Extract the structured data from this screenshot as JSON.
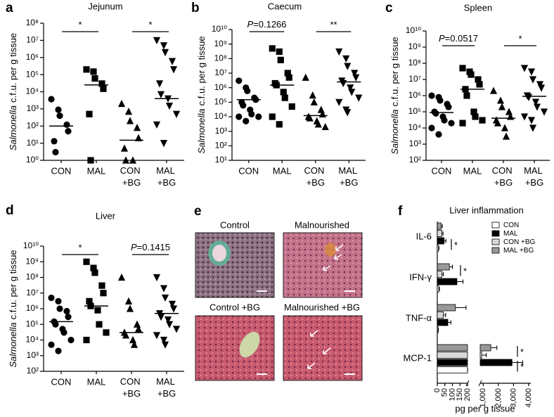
{
  "chart_data": [
    {
      "type": "dot",
      "panel": "a",
      "title": "Jejunum",
      "ylabel": {
        "italic": "Salmonella",
        "text": "c.f.u. per g tissue"
      },
      "categories": [
        "CON",
        "MAL",
        "CON +BG",
        "MAL +BG"
      ],
      "markers": [
        "circle",
        "square",
        "triangle",
        "triangle-down"
      ],
      "color": "#000000",
      "log_scale": true,
      "ylim": [
        1,
        100000000
      ],
      "yticks": [
        {
          "value": 1,
          "label": "10⁰"
        },
        {
          "value": 10,
          "label": "10¹"
        },
        {
          "value": 100,
          "label": "10²"
        },
        {
          "value": 1000,
          "label": "10³"
        },
        {
          "value": 10000,
          "label": "10⁴"
        },
        {
          "value": 100000,
          "label": "10⁵"
        },
        {
          "value": 1000000,
          "label": "10⁶"
        },
        {
          "value": 10000000,
          "label": "10⁷"
        },
        {
          "value": 100000000,
          "label": "10⁸"
        }
      ],
      "values": [
        [
          3700,
          900,
          400,
          120,
          50,
          13,
          3
        ],
        [
          200000,
          150000,
          60000,
          30000,
          15000,
          500,
          1
        ],
        [
          2000,
          700,
          200,
          80,
          20,
          5,
          1,
          1
        ],
        [
          10000000,
          5000000,
          2000000,
          600000,
          200000,
          30000,
          7000,
          4000,
          1500,
          500,
          120,
          10
        ]
      ],
      "medians": [
        100,
        25000,
        15,
        4000
      ],
      "annotations": [
        "*",
        "*"
      ]
    },
    {
      "type": "dot",
      "panel": "b",
      "title": "Caecum",
      "ylabel": {
        "italic": "Salmonella",
        "text": "c.f.u. per g tissue"
      },
      "categories": [
        "CON",
        "MAL",
        "CON +BG",
        "MAL +BG"
      ],
      "markers": [
        "circle",
        "square",
        "triangle",
        "triangle-down"
      ],
      "color": "#000000",
      "log_scale": true,
      "ylim": [
        10,
        10000000000
      ],
      "yticks": [
        {
          "value": 10,
          "label": "10¹"
        },
        {
          "value": 100,
          "label": "10²"
        },
        {
          "value": 1000,
          "label": "10³"
        },
        {
          "value": 10000,
          "label": "10⁴"
        },
        {
          "value": 100000,
          "label": "10⁵"
        },
        {
          "value": 1000000,
          "label": "10⁶"
        },
        {
          "value": 10000000,
          "label": "10⁷"
        },
        {
          "value": 100000000,
          "label": "10⁸"
        },
        {
          "value": 1000000000,
          "label": "10⁹"
        },
        {
          "value": 10000000000,
          "label": "10¹⁰"
        }
      ],
      "values": [
        [
          3000000,
          1000000,
          600000,
          200000,
          150000,
          100000,
          60000,
          30000,
          15000,
          10000,
          10000,
          5000
        ],
        [
          500000000,
          300000000,
          80000000,
          10000000,
          5000000,
          2000000,
          1500000,
          500000,
          200000,
          50000,
          10000,
          3000
        ],
        [
          5000000,
          300000,
          100000,
          30000,
          15000,
          10000,
          8000,
          5000,
          3000,
          2000
        ],
        [
          300000000,
          100000000,
          30000000,
          10000000,
          5000000,
          3000000,
          2000000,
          1000000,
          500000,
          200000,
          100000,
          30000,
          20000
        ]
      ],
      "medians": [
        150000,
        1500000,
        12000,
        2500000
      ],
      "annotations": [
        "P=0.1266",
        "**"
      ]
    },
    {
      "type": "dot",
      "panel": "c",
      "title": "Spleen",
      "ylabel": {
        "italic": "Salmonella",
        "text": "c.f.u. per g tissue"
      },
      "categories": [
        "CON",
        "MAL",
        "CON +BG",
        "MAL +BG"
      ],
      "markers": [
        "circle",
        "square",
        "triangle",
        "triangle-down"
      ],
      "color": "#000000",
      "log_scale": true,
      "ylim": [
        100,
        10000000000
      ],
      "yticks": [
        {
          "value": 100,
          "label": "10²"
        },
        {
          "value": 1000,
          "label": "10³"
        },
        {
          "value": 10000,
          "label": "10⁴"
        },
        {
          "value": 100000,
          "label": "10⁵"
        },
        {
          "value": 1000000,
          "label": "10⁶"
        },
        {
          "value": 10000000,
          "label": "10⁷"
        },
        {
          "value": 100000000,
          "label": "10⁸"
        },
        {
          "value": 1000000000,
          "label": "10⁹"
        },
        {
          "value": 10000000000,
          "label": "10¹⁰"
        }
      ],
      "values": [
        [
          1000000,
          800000,
          500000,
          300000,
          200000,
          100000,
          80000,
          50000,
          30000,
          20000,
          10000,
          4000
        ],
        [
          50000000,
          30000000,
          20000000,
          10000000,
          5000000,
          2500000,
          1000000,
          100000,
          50000,
          30000,
          20000
        ],
        [
          2000000,
          500000,
          200000,
          100000,
          50000,
          30000,
          20000,
          10000,
          3000
        ],
        [
          50000000,
          30000000,
          10000000,
          5000000,
          3000000,
          1000000,
          800000,
          400000,
          200000,
          100000,
          50000,
          30000,
          10000
        ]
      ],
      "medians": [
        90000,
        2500000,
        40000,
        900000
      ],
      "annotations": [
        "P=0.0517",
        "*"
      ]
    },
    {
      "type": "dot",
      "panel": "d",
      "title": "Liver",
      "ylabel": {
        "italic": "Salmonella",
        "text": "c.f.u. per g tissue"
      },
      "categories": [
        "CON",
        "MAL",
        "CON +BG",
        "MAL +BG"
      ],
      "markers": [
        "circle",
        "square",
        "triangle",
        "triangle-down"
      ],
      "color": "#000000",
      "log_scale": true,
      "ylim": [
        100,
        10000000000
      ],
      "yticks": [
        {
          "value": 100,
          "label": "10²"
        },
        {
          "value": 1000,
          "label": "10³"
        },
        {
          "value": 10000,
          "label": "10⁴"
        },
        {
          "value": 100000,
          "label": "10⁵"
        },
        {
          "value": 1000000,
          "label": "10⁶"
        },
        {
          "value": 10000000,
          "label": "10⁷"
        },
        {
          "value": 100000000,
          "label": "10⁸"
        },
        {
          "value": 1000000000,
          "label": "10⁹"
        },
        {
          "value": 10000000000,
          "label": "10¹⁰"
        }
      ],
      "values": [
        [
          5000000,
          3000000,
          1000000,
          700000,
          300000,
          150000,
          100000,
          50000,
          30000,
          10000,
          5000,
          2000
        ],
        [
          1000000000,
          400000000,
          200000000,
          30000000,
          10000000,
          3000000,
          1500000,
          800000,
          100000,
          30000,
          10000
        ],
        [
          100000000,
          3000000,
          1000000,
          100000,
          50000,
          30000,
          20000,
          10000,
          5000
        ],
        [
          100000000,
          20000000,
          5000000,
          2000000,
          1000000,
          500000,
          300000,
          200000,
          100000,
          50000,
          20000,
          10000,
          5000
        ]
      ],
      "medians": [
        150000,
        1500000,
        30000,
        500000
      ],
      "annotations": [
        "*",
        "P=0.1415"
      ]
    },
    {
      "type": "barh",
      "panel": "f",
      "title": "Liver inflammation",
      "xlabel": "pg per g tissue",
      "categories": [
        "IL-6",
        "IFN-γ",
        "TNF-α",
        "MCP-1"
      ],
      "series": [
        {
          "name": "CON",
          "color": "#ffffff",
          "values": [
            8,
            10,
            5,
            350
          ],
          "errors": [
            3,
            4,
            2,
            100
          ]
        },
        {
          "name": "MAL",
          "color": "#000000",
          "values": [
            45,
            130,
            70,
            2900
          ],
          "errors": [
            12,
            40,
            20,
            700
          ]
        },
        {
          "name": "CON +BG",
          "color": "#d9d9d9",
          "values": [
            30,
            30,
            40,
            900
          ],
          "errors": [
            8,
            10,
            15,
            300
          ]
        },
        {
          "name": "MAL +BG",
          "color": "#999999",
          "values": [
            25,
            80,
            120,
            1500
          ],
          "errors": [
            8,
            20,
            70,
            400
          ]
        }
      ],
      "xlim_segments": [
        [
          0,
          200
        ],
        [
          800,
          4000
        ]
      ],
      "xticks": [
        0,
        50,
        100,
        150,
        200,
        {
          "value": 1000,
          "label": "1,000"
        },
        {
          "value": 2000,
          "label": "2,000"
        },
        {
          "value": 3000,
          "label": "3,000"
        },
        {
          "value": 4000,
          "label": "4,000"
        }
      ],
      "legend": "upper right",
      "annotations": [
        "*",
        "*",
        "*",
        "*"
      ]
    }
  ],
  "panel_e": {
    "panel": "e",
    "images": [
      "Control",
      "Malnourished",
      "Control +BG",
      "Malnourished +BG"
    ]
  }
}
